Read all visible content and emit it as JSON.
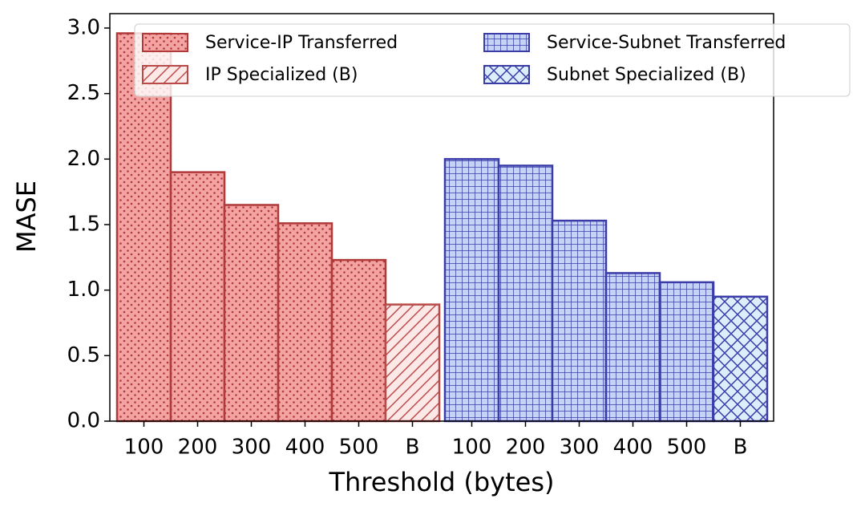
{
  "chart_data": {
    "type": "bar",
    "x_label": "Threshold (bytes)",
    "y_label": "MASE",
    "categories": [
      "100",
      "200",
      "300",
      "400",
      "500",
      "B",
      "100",
      "200",
      "300",
      "400",
      "500",
      "B"
    ],
    "series": [
      {
        "name": "Service-IP Transferred",
        "color": "#f4a3a3",
        "edge": "#b03a3a",
        "pattern": "dots",
        "values": [
          2.96,
          1.9,
          1.65,
          1.51,
          1.23,
          null,
          null,
          null,
          null,
          null,
          null,
          null
        ]
      },
      {
        "name": "IP Specialized (B)",
        "color": "#fde8e8",
        "edge": "#b94a48",
        "pattern": "diag",
        "values": [
          null,
          null,
          null,
          null,
          null,
          0.89,
          null,
          null,
          null,
          null,
          null,
          null
        ]
      },
      {
        "name": "Service-Subnet Transferred",
        "color": "#c5d3f3",
        "edge": "#3c3ca8",
        "pattern": "grid",
        "values": [
          null,
          null,
          null,
          null,
          null,
          null,
          2.0,
          1.95,
          1.53,
          1.13,
          1.06,
          null
        ]
      },
      {
        "name": "Subnet Specialized (B)",
        "color": "#dbeefa",
        "edge": "#3c3ca8",
        "pattern": "cross",
        "values": [
          null,
          null,
          null,
          null,
          null,
          null,
          null,
          null,
          null,
          null,
          null,
          0.95
        ]
      }
    ],
    "ylim": [
      0,
      3.11
    ],
    "yticks": [
      {
        "value": 0,
        "label": "0.0"
      },
      0.5,
      {
        "value": 1,
        "label": "1.0"
      },
      1.5,
      {
        "value": 2,
        "label": "2.0"
      },
      2.5,
      {
        "value": 3,
        "label": "3.0"
      }
    ],
    "legend": "upper right"
  }
}
